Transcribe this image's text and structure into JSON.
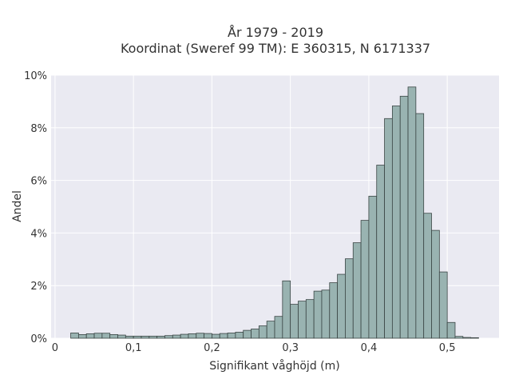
{
  "chart_data": {
    "type": "bar",
    "title_line1": "År 1979 - 2019",
    "title_line2": "Koordinat (Sweref 99 TM): E 360315, N 6171337",
    "xlabel": "Signifikant våghöjd (m)",
    "ylabel": "Andel",
    "xlim": [
      -0.005,
      0.566
    ],
    "ylim": [
      0,
      10
    ],
    "xticks": [
      {
        "value": 0.0,
        "label": "0"
      },
      {
        "value": 0.1,
        "label": "0,1"
      },
      {
        "value": 0.2,
        "label": "0,2"
      },
      {
        "value": 0.3,
        "label": "0,3"
      },
      {
        "value": 0.4,
        "label": "0,4"
      },
      {
        "value": 0.5,
        "label": "0,5"
      }
    ],
    "yticks": [
      {
        "value": 0,
        "label": "0%"
      },
      {
        "value": 2,
        "label": "2%"
      },
      {
        "value": 4,
        "label": "4%"
      },
      {
        "value": 6,
        "label": "6%"
      },
      {
        "value": 8,
        "label": "8%"
      },
      {
        "value": 10,
        "label": "10%"
      }
    ],
    "grid": true,
    "bin_width": 0.01,
    "bins_start": [
      0.02,
      0.03,
      0.04,
      0.05,
      0.06,
      0.07,
      0.08,
      0.09,
      0.1,
      0.11,
      0.12,
      0.13,
      0.14,
      0.15,
      0.16,
      0.17,
      0.18,
      0.19,
      0.2,
      0.21,
      0.22,
      0.23,
      0.24,
      0.25,
      0.26,
      0.27,
      0.28,
      0.29,
      0.3,
      0.31,
      0.32,
      0.33,
      0.34,
      0.35,
      0.36,
      0.37,
      0.38,
      0.39,
      0.4,
      0.41,
      0.42,
      0.43,
      0.44,
      0.45,
      0.46,
      0.47,
      0.48,
      0.49,
      0.5,
      0.51,
      0.52,
      0.53
    ],
    "values": [
      0.2,
      0.14,
      0.17,
      0.19,
      0.19,
      0.14,
      0.12,
      0.08,
      0.08,
      0.08,
      0.08,
      0.08,
      0.1,
      0.12,
      0.15,
      0.17,
      0.19,
      0.18,
      0.15,
      0.18,
      0.2,
      0.23,
      0.3,
      0.35,
      0.47,
      0.65,
      0.83,
      2.18,
      1.29,
      1.41,
      1.47,
      1.79,
      1.83,
      2.11,
      2.43,
      3.02,
      3.63,
      4.48,
      5.4,
      6.58,
      8.35,
      8.83,
      9.2,
      9.55,
      8.54,
      4.75,
      4.1,
      2.52,
      0.6,
      0.07,
      0.03,
      0.02
    ],
    "colors": {
      "bar_fill": "#99b3b1",
      "bar_stroke": "#3a4544",
      "plot_bg": "#eaeaf2",
      "grid": "#ffffff"
    }
  }
}
